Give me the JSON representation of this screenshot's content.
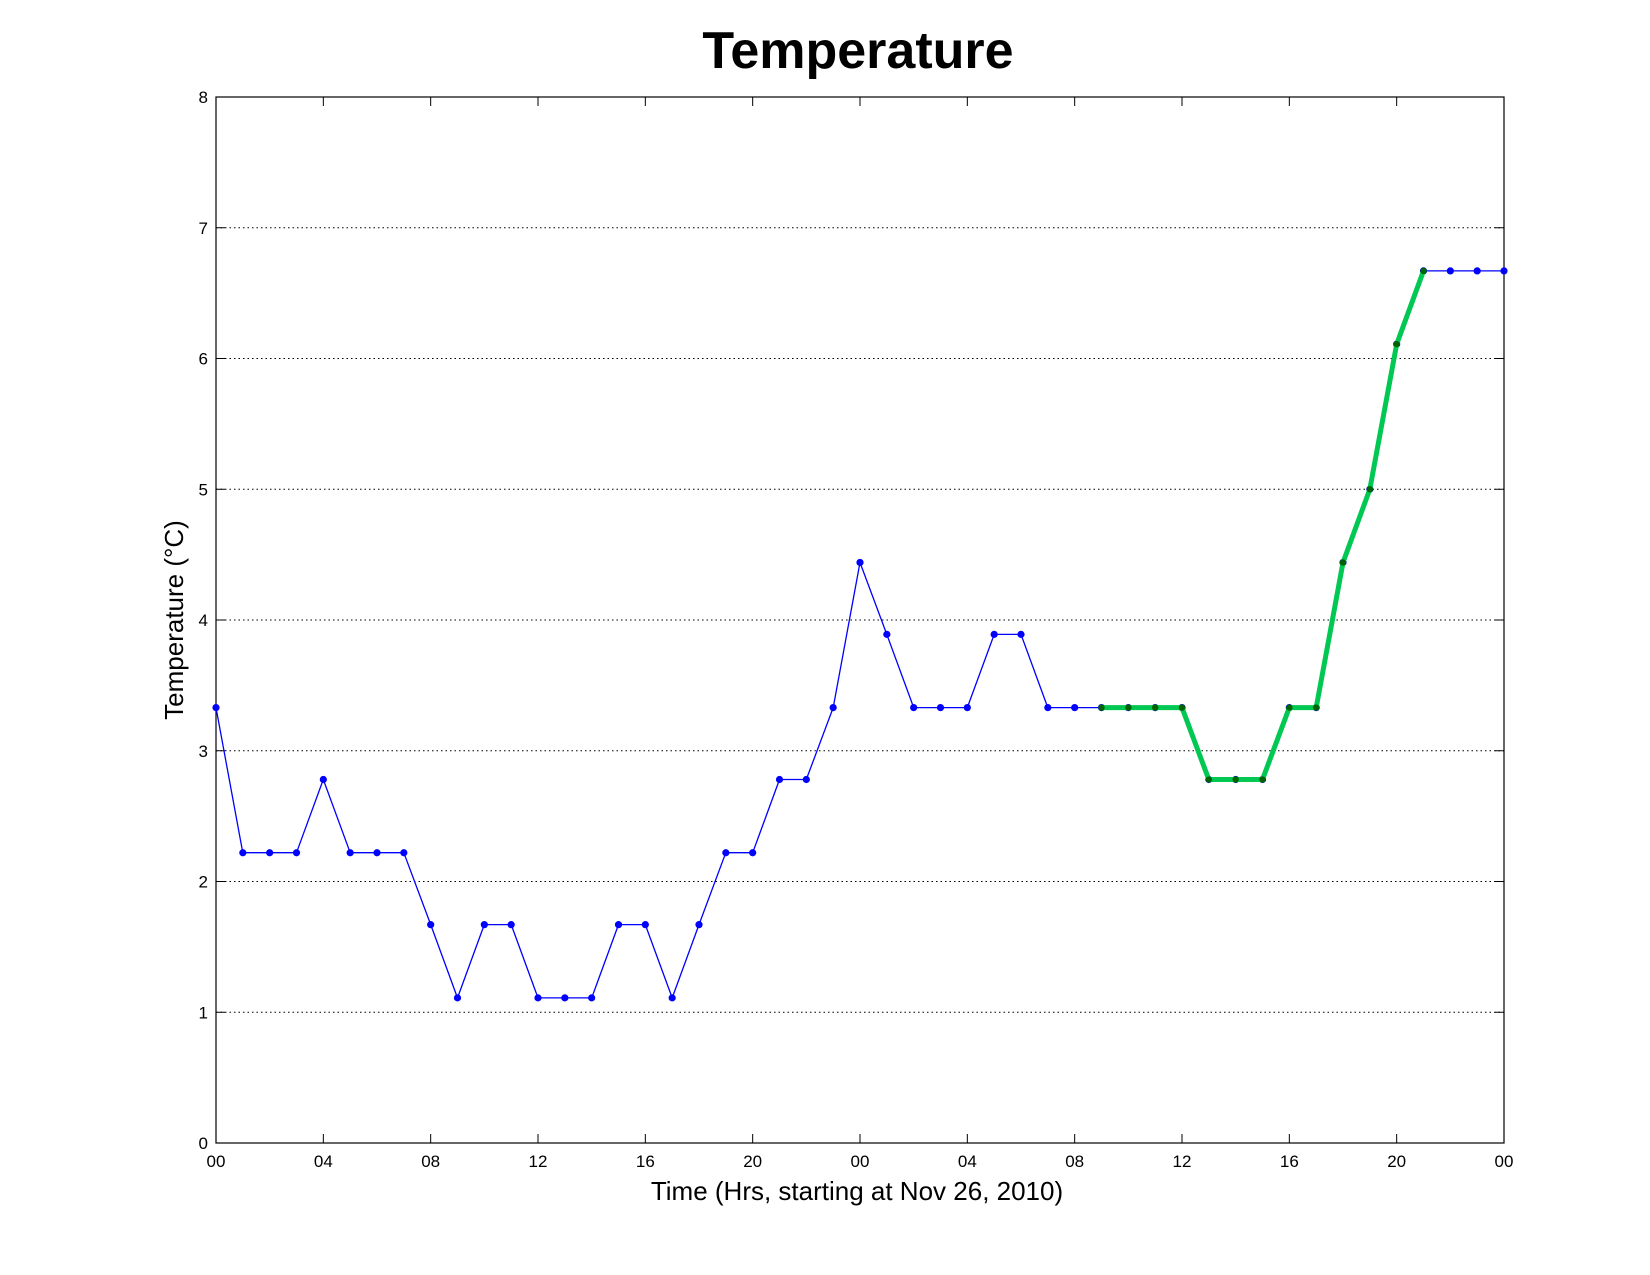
{
  "chart_data": {
    "type": "line",
    "title": "Temperature",
    "xlabel": "Time (Hrs, starting at Nov 26, 2010)",
    "ylabel": "Temperature (°C)",
    "ylim": [
      0,
      8
    ],
    "xlim": [
      0,
      48
    ],
    "grid": "y-dotted",
    "x_ticks": [
      0,
      4,
      8,
      12,
      16,
      20,
      24,
      28,
      32,
      36,
      40,
      44,
      48
    ],
    "x_tick_labels": [
      "00",
      "04",
      "08",
      "12",
      "16",
      "20",
      "00",
      "04",
      "08",
      "12",
      "16",
      "20",
      "00"
    ],
    "y_ticks": [
      0,
      1,
      2,
      3,
      4,
      5,
      6,
      7,
      8
    ],
    "y_tick_labels": [
      "0",
      "1",
      "2",
      "3",
      "4",
      "5",
      "6",
      "7",
      "8"
    ],
    "series": [
      {
        "color": "#0000ff",
        "marker": "dot",
        "x": [
          0,
          1,
          2,
          3,
          4,
          5,
          6,
          7,
          8,
          9,
          10,
          11,
          12,
          13,
          14,
          15,
          16,
          17,
          18,
          19,
          20,
          21,
          22,
          23,
          24,
          25,
          26,
          27,
          28,
          29,
          30,
          31,
          32,
          33,
          34,
          35,
          36,
          37,
          38,
          39,
          40,
          41,
          42,
          43,
          44,
          45,
          46,
          47,
          48
        ],
        "values": [
          3.33,
          2.22,
          2.22,
          2.22,
          2.78,
          2.22,
          2.22,
          2.22,
          1.67,
          1.11,
          1.67,
          1.67,
          1.11,
          1.11,
          1.11,
          1.67,
          1.67,
          1.11,
          1.67,
          2.22,
          2.22,
          2.78,
          2.78,
          3.33,
          4.44,
          3.89,
          3.33,
          3.33,
          3.33,
          3.89,
          3.89,
          3.33,
          3.33,
          3.33,
          3.33,
          3.33,
          3.33,
          2.78,
          2.78,
          2.78,
          3.33,
          3.33,
          4.44,
          5.0,
          6.11,
          6.67,
          6.67,
          6.67,
          6.67
        ]
      },
      {
        "color": "#00c853",
        "marker_color": "#006400",
        "marker": "dot",
        "x": [
          33,
          34,
          35,
          36,
          37,
          38,
          39,
          40,
          41,
          42,
          43,
          44,
          45
        ],
        "values": [
          3.33,
          3.33,
          3.33,
          3.33,
          2.78,
          2.78,
          2.78,
          3.33,
          3.33,
          4.44,
          5.0,
          6.11,
          6.67
        ]
      }
    ]
  }
}
